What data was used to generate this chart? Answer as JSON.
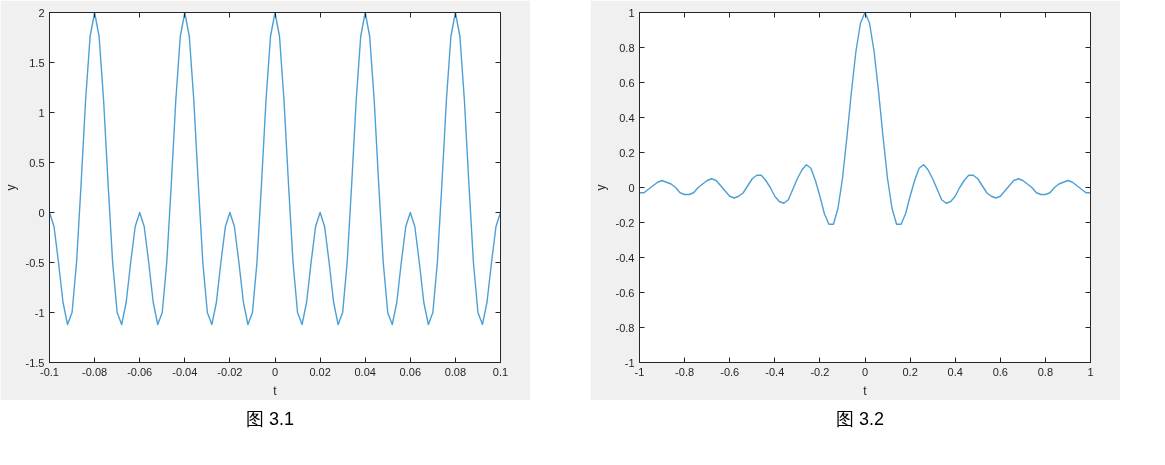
{
  "chart_data": [
    {
      "type": "line",
      "xlabel": "t",
      "ylabel": "y",
      "annotations": [
        "图 3.1"
      ],
      "xlim": [
        -0.1,
        0.1
      ],
      "ylim": [
        -1.5,
        2
      ],
      "xticks": [
        -0.1,
        -0.08,
        -0.06,
        -0.04,
        -0.02,
        0,
        0.02,
        0.04,
        0.06,
        0.08,
        0.1
      ],
      "yticks": [
        -1.5,
        -1,
        -0.5,
        0,
        0.5,
        1,
        1.5,
        2
      ],
      "x": [
        -0.1,
        -0.098,
        -0.096,
        -0.094,
        -0.092,
        -0.09,
        -0.088,
        -0.086,
        -0.084,
        -0.082,
        -0.08,
        -0.078,
        -0.076,
        -0.074,
        -0.072,
        -0.07,
        -0.068,
        -0.066,
        -0.064,
        -0.062,
        -0.06,
        -0.058,
        -0.056,
        -0.054,
        -0.052,
        -0.05,
        -0.048,
        -0.046,
        -0.044,
        -0.042,
        -0.04,
        -0.038,
        -0.036,
        -0.034,
        -0.032,
        -0.03,
        -0.028,
        -0.026,
        -0.024,
        -0.022,
        -0.02,
        -0.018,
        -0.016,
        -0.014,
        -0.012,
        -0.01,
        -0.008,
        -0.006,
        -0.004,
        -0.002,
        0,
        0.002,
        0.004,
        0.006,
        0.008,
        0.01,
        0.012,
        0.014,
        0.016,
        0.018,
        0.02,
        0.022,
        0.024,
        0.026,
        0.028,
        0.03,
        0.032,
        0.034,
        0.036,
        0.038,
        0.04,
        0.042,
        0.044,
        0.046,
        0.048,
        0.05,
        0.052,
        0.054,
        0.056,
        0.058,
        0.06,
        0.062,
        0.064,
        0.066,
        0.068,
        0.07,
        0.072,
        0.074,
        0.076,
        0.078,
        0.08,
        0.082,
        0.084,
        0.086,
        0.088,
        0.09,
        0.092,
        0.094,
        0.096,
        0.098,
        0.1
      ],
      "series": [
        {
          "color": "#4d9fd6",
          "values": [
            0,
            -0.14,
            -0.5,
            -0.9,
            -1.12,
            -1,
            -0.5,
            0.28,
            1.12,
            1.76,
            2,
            1.76,
            1.12,
            0.28,
            -0.5,
            -1,
            -1.12,
            -0.9,
            -0.5,
            -0.14,
            0,
            -0.14,
            -0.5,
            -0.9,
            -1.12,
            -1,
            -0.5,
            0.28,
            1.12,
            1.76,
            2,
            1.76,
            1.12,
            0.28,
            -0.5,
            -1,
            -1.12,
            -0.9,
            -0.5,
            -0.14,
            0,
            -0.14,
            -0.5,
            -0.9,
            -1.12,
            -1,
            -0.5,
            0.28,
            1.12,
            1.76,
            2,
            1.76,
            1.12,
            0.28,
            -0.5,
            -1,
            -1.12,
            -0.9,
            -0.5,
            -0.14,
            0,
            -0.14,
            -0.5,
            -0.9,
            -1.12,
            -1,
            -0.5,
            0.28,
            1.12,
            1.76,
            2,
            1.76,
            1.12,
            0.28,
            -0.5,
            -1,
            -1.12,
            -0.9,
            -0.5,
            -0.14,
            0,
            -0.14,
            -0.5,
            -0.9,
            -1.12,
            -1,
            -0.5,
            0.28,
            1.12,
            1.76,
            2,
            1.76,
            1.12,
            0.28,
            -0.5,
            -1,
            -1.12,
            -0.9,
            -0.5,
            -0.14,
            0
          ]
        }
      ]
    },
    {
      "type": "line",
      "xlabel": "t",
      "ylabel": "y",
      "annotations": [
        "图 3.2"
      ],
      "xlim": [
        -1,
        1
      ],
      "ylim": [
        -1,
        1
      ],
      "xticks": [
        -1,
        -0.8,
        -0.6,
        -0.4,
        -0.2,
        0,
        0.2,
        0.4,
        0.6,
        0.8,
        1
      ],
      "yticks": [
        -1,
        -0.8,
        -0.6,
        -0.4,
        -0.2,
        0,
        0.2,
        0.4,
        0.6,
        0.8,
        1
      ],
      "x": [
        -1,
        -0.98,
        -0.96,
        -0.94,
        -0.92,
        -0.9,
        -0.88,
        -0.86,
        -0.84,
        -0.82,
        -0.8,
        -0.78,
        -0.76,
        -0.74,
        -0.72,
        -0.7,
        -0.68,
        -0.66,
        -0.64,
        -0.62,
        -0.6,
        -0.58,
        -0.56,
        -0.54,
        -0.52,
        -0.5,
        -0.48,
        -0.46,
        -0.44,
        -0.42,
        -0.4,
        -0.38,
        -0.36,
        -0.34,
        -0.32,
        -0.3,
        -0.28,
        -0.26,
        -0.24,
        -0.22,
        -0.2,
        -0.18,
        -0.16,
        -0.14,
        -0.12,
        -0.1,
        -0.08,
        -0.06,
        -0.04,
        -0.02,
        0,
        0.02,
        0.04,
        0.06,
        0.08,
        0.1,
        0.12,
        0.14,
        0.16,
        0.18,
        0.2,
        0.22,
        0.24,
        0.26,
        0.28,
        0.3,
        0.32,
        0.34,
        0.36,
        0.38,
        0.4,
        0.42,
        0.44,
        0.46,
        0.48,
        0.5,
        0.52,
        0.54,
        0.56,
        0.58,
        0.6,
        0.62,
        0.64,
        0.66,
        0.68,
        0.7,
        0.72,
        0.74,
        0.76,
        0.78,
        0.8,
        0.82,
        0.84,
        0.86,
        0.88,
        0.9,
        0.92,
        0.94,
        0.96,
        0.98,
        1
      ],
      "series": [
        {
          "color": "#4d9fd6",
          "values": [
            -0.03,
            -0.03,
            -0.01,
            0.01,
            0.03,
            0.04,
            0.03,
            0.02,
            0,
            -0.03,
            -0.04,
            -0.04,
            -0.03,
            0,
            0.02,
            0.04,
            0.05,
            0.04,
            0.01,
            -0.02,
            -0.05,
            -0.06,
            -0.05,
            -0.03,
            0.01,
            0.05,
            0.07,
            0.07,
            0.04,
            0,
            -0.05,
            -0.08,
            -0.09,
            -0.07,
            -0.01,
            0.05,
            0.1,
            0.13,
            0.11,
            0.04,
            -0.05,
            -0.15,
            -0.21,
            -0.21,
            -0.12,
            0.05,
            0.29,
            0.55,
            0.78,
            0.94,
            1,
            0.94,
            0.78,
            0.55,
            0.29,
            0.05,
            -0.12,
            -0.21,
            -0.21,
            -0.15,
            -0.05,
            0.04,
            0.11,
            0.13,
            0.1,
            0.05,
            -0.01,
            -0.07,
            -0.09,
            -0.08,
            -0.05,
            0,
            0.04,
            0.07,
            0.07,
            0.05,
            0.01,
            -0.03,
            -0.05,
            -0.06,
            -0.05,
            -0.02,
            0.01,
            0.04,
            0.05,
            0.04,
            0.02,
            0,
            -0.03,
            -0.04,
            -0.04,
            -0.03,
            0,
            0.02,
            0.03,
            0.04,
            0.03,
            0.01,
            -0.01,
            -0.03,
            -0.03
          ]
        }
      ]
    }
  ]
}
